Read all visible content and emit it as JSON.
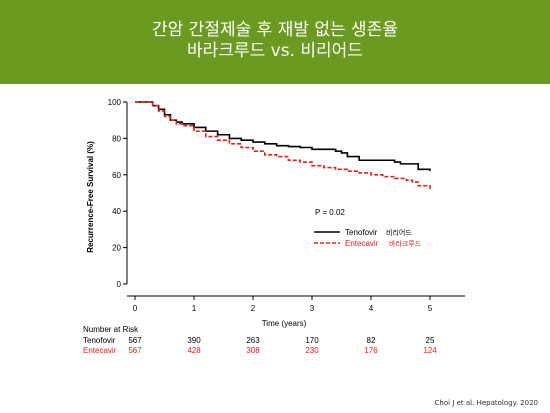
{
  "banner": {
    "color": "#6a9a1f",
    "title_line1": "간암 간절제술 후 재발 없는 생존율",
    "title_line2": "바라크루드 vs. 비리어드"
  },
  "chart_data": {
    "type": "line",
    "xlabel": "Time (years)",
    "ylabel": "Recurrence-Free Survival (%)",
    "xlim": [
      0,
      5.5
    ],
    "ylim": [
      0,
      100
    ],
    "xticks": [
      0,
      1,
      2,
      3,
      4,
      5
    ],
    "yticks": [
      0,
      20,
      40,
      60,
      80,
      100
    ],
    "grid": false,
    "legend_position": "right",
    "annotation": "P = 0.02",
    "series": [
      {
        "name": "Tenofovir",
        "name_ko": "비리어드",
        "color": "#000000",
        "style": "solid",
        "x": [
          0,
          0.1,
          0.2,
          0.3,
          0.4,
          0.5,
          0.6,
          0.7,
          0.8,
          1.0,
          1.2,
          1.4,
          1.6,
          1.8,
          2.0,
          2.2,
          2.4,
          2.6,
          2.8,
          3.0,
          3.2,
          3.4,
          3.5,
          3.6,
          3.8,
          4.0,
          4.2,
          4.4,
          4.5,
          4.7,
          4.8,
          5.0
        ],
        "y": [
          100,
          100,
          100,
          98,
          96,
          93,
          90,
          89,
          88,
          86,
          84,
          82,
          80,
          79,
          78,
          77,
          76,
          75.5,
          75,
          74,
          74,
          73,
          72,
          70,
          68,
          68,
          68,
          67,
          66,
          66,
          63,
          62
        ]
      },
      {
        "name": "Entecavir",
        "name_ko": "바라크루드",
        "color": "#e0201b",
        "style": "dashed",
        "x": [
          0,
          0.1,
          0.2,
          0.3,
          0.4,
          0.5,
          0.6,
          0.7,
          0.8,
          1.0,
          1.2,
          1.4,
          1.6,
          1.8,
          2.0,
          2.2,
          2.4,
          2.6,
          2.8,
          3.0,
          3.2,
          3.4,
          3.6,
          3.8,
          4.0,
          4.2,
          4.4,
          4.6,
          4.7,
          4.8,
          5.0
        ],
        "y": [
          100,
          100,
          100,
          98,
          95,
          92,
          90,
          88,
          87,
          84,
          81,
          79,
          77,
          75,
          73,
          71,
          70,
          68,
          67,
          65,
          64,
          63,
          62,
          61,
          60,
          59,
          58,
          57,
          56,
          54,
          52
        ]
      }
    ],
    "risk_table": {
      "title": "Number at Risk",
      "rows": [
        {
          "label": "Tenofovir",
          "color": "#000000",
          "values": [
            "567",
            "390",
            "263",
            "170",
            "82",
            "25"
          ]
        },
        {
          "label": "Entecavir",
          "color": "#e0201b",
          "values": [
            "567",
            "428",
            "308",
            "230",
            "176",
            "124"
          ]
        }
      ]
    }
  },
  "citation": "Choi J et al. Hepatology. 2020"
}
